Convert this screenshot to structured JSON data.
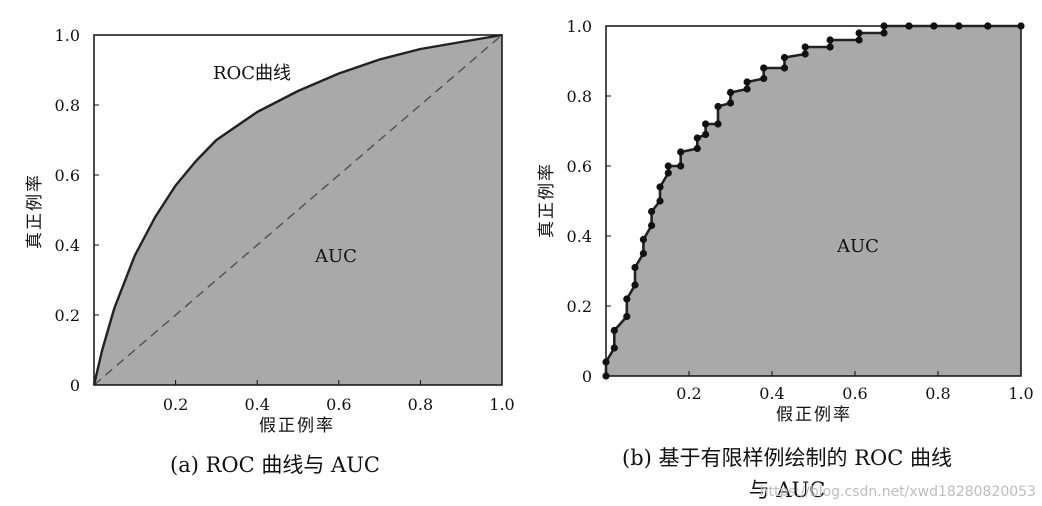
{
  "charts": [
    {
      "caption": "(a) ROC 曲线与 AUC",
      "curve_label": "ROC曲线",
      "area_label": "AUC",
      "xlabel": "假正例率",
      "ylabel": "真正例率",
      "x_ticks": [
        "0.2",
        "0.4",
        "0.6",
        "0.8",
        "1.0"
      ],
      "y_ticks": [
        "0",
        "0.2",
        "0.4",
        "0.6",
        "0.8",
        "1.0"
      ]
    },
    {
      "caption_line1": "(b) 基于有限样例绘制的 ROC 曲线",
      "caption_line2": "与 AUC",
      "area_label": "AUC",
      "xlabel": "假正例率",
      "ylabel": "真正例率",
      "x_ticks": [
        "0.2",
        "0.4",
        "0.6",
        "0.8",
        "1.0"
      ],
      "y_ticks": [
        "0",
        "0.2",
        "0.4",
        "0.6",
        "0.8",
        "1.0"
      ]
    }
  ],
  "watermark": "https://blog.csdn.net/xwd18280820053",
  "colors": {
    "fill": "#a9a9a9",
    "curve": "#222222",
    "diagonal": "#555555"
  },
  "chart_data": [
    {
      "type": "area",
      "xlim": [
        0,
        1
      ],
      "ylim": [
        0,
        1
      ],
      "grid": false,
      "series": [
        {
          "name": "ROC曲线",
          "x": [
            0,
            0.02,
            0.05,
            0.1,
            0.15,
            0.2,
            0.25,
            0.3,
            0.4,
            0.5,
            0.6,
            0.7,
            0.8,
            0.9,
            1.0
          ],
          "y": [
            0,
            0.1,
            0.22,
            0.37,
            0.48,
            0.57,
            0.64,
            0.7,
            0.78,
            0.84,
            0.89,
            0.93,
            0.96,
            0.98,
            1.0
          ]
        },
        {
          "x": [
            0,
            1
          ],
          "y": [
            0,
            1
          ]
        }
      ]
    },
    {
      "type": "line",
      "xlim": [
        0,
        1
      ],
      "ylim": [
        0,
        1
      ],
      "grid": false,
      "series": [
        {
          "x": [
            0,
            0,
            0.02,
            0.02,
            0.05,
            0.05,
            0.07,
            0.07,
            0.09,
            0.09,
            0.11,
            0.11,
            0.13,
            0.13,
            0.15,
            0.15,
            0.18,
            0.18,
            0.22,
            0.22,
            0.24,
            0.24,
            0.27,
            0.27,
            0.3,
            0.3,
            0.34,
            0.34,
            0.38,
            0.38,
            0.43,
            0.43,
            0.48,
            0.48,
            0.54,
            0.54,
            0.61,
            0.61,
            0.67,
            0.67,
            0.73,
            0.73,
            0.79,
            0.79,
            0.85,
            0.85,
            0.92,
            0.92,
            1.0
          ],
          "y": [
            0,
            0.04,
            0.08,
            0.13,
            0.17,
            0.22,
            0.26,
            0.31,
            0.35,
            0.39,
            0.43,
            0.47,
            0.5,
            0.54,
            0.58,
            0.6,
            0.6,
            0.64,
            0.65,
            0.68,
            0.69,
            0.72,
            0.72,
            0.77,
            0.78,
            0.81,
            0.82,
            0.84,
            0.85,
            0.88,
            0.88,
            0.91,
            0.92,
            0.94,
            0.94,
            0.96,
            0.96,
            0.98,
            0.98,
            1.0,
            1.0,
            1.0,
            1.0,
            1.0,
            1.0,
            1.0,
            1.0,
            1.0,
            1.0
          ]
        }
      ]
    }
  ]
}
